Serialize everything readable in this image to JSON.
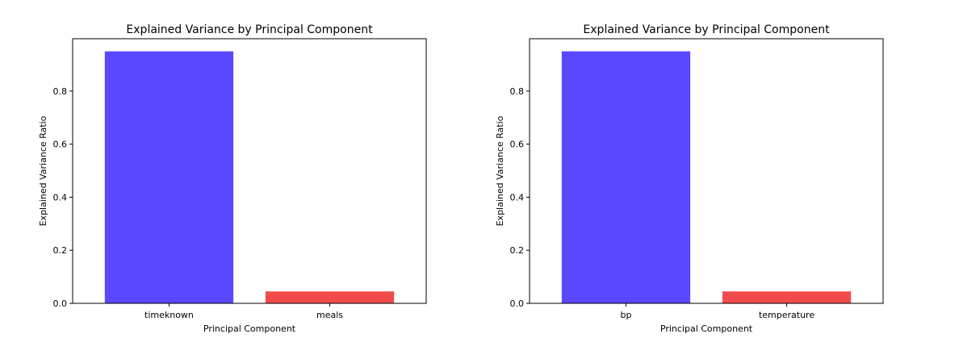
{
  "chart_data": [
    {
      "type": "bar",
      "title": "Explained Variance by Principal Component",
      "xlabel": "Principal Component",
      "ylabel": "Explained Variance Ratio",
      "categories": [
        "timeknown",
        "meals"
      ],
      "values": [
        0.95,
        0.045
      ],
      "colors": [
        "#5a48ff",
        "#f24b4b"
      ],
      "ylim": [
        0,
        0.9975
      ],
      "yticks": [
        0.0,
        0.2,
        0.4,
        0.6,
        0.8
      ],
      "ytick_labels": [
        "0.0",
        "0.2",
        "0.4",
        "0.6",
        "0.8"
      ],
      "grid": false
    },
    {
      "type": "bar",
      "title": "Explained Variance by Principal Component",
      "xlabel": "Principal Component",
      "ylabel": "Explained Variance Ratio",
      "categories": [
        "bp",
        "temperature"
      ],
      "values": [
        0.95,
        0.045
      ],
      "colors": [
        "#5a48ff",
        "#f24b4b"
      ],
      "ylim": [
        0,
        0.9975
      ],
      "yticks": [
        0.0,
        0.2,
        0.4,
        0.6,
        0.8
      ],
      "ytick_labels": [
        "0.0",
        "0.2",
        "0.4",
        "0.6",
        "0.8"
      ],
      "grid": false
    }
  ]
}
